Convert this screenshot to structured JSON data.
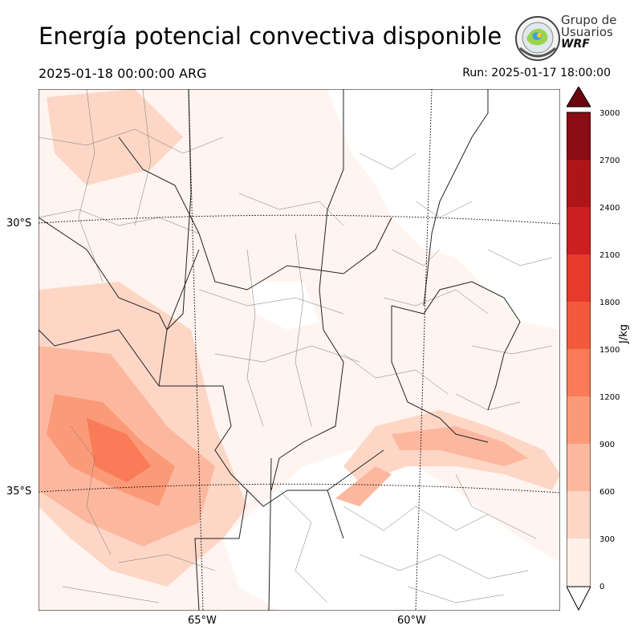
{
  "header": {
    "title": "Energía potencial convectiva disponible",
    "valid_time": "2025-01-18 00:00:00 ARG",
    "run_time": "Run: 2025-01-17 18:00:00"
  },
  "logo": {
    "line1": "Grupo de",
    "line2": "Usuarios",
    "line3": "WRF"
  },
  "map": {
    "lat_labels": [
      "30°S",
      "35°S"
    ],
    "lon_labels": [
      "65°W",
      "60°W"
    ]
  },
  "colorbar": {
    "unit": "J/kg",
    "ticks": [
      "0",
      "300",
      "600",
      "900",
      "1200",
      "1500",
      "1800",
      "2100",
      "2400",
      "2700",
      "3000"
    ],
    "colors": [
      "#fff0e8",
      "#fdd6c6",
      "#fcb89e",
      "#fb9a78",
      "#f97b58",
      "#f25a3e",
      "#e63a2c",
      "#cc1f22",
      "#ae1519",
      "#8a0c14",
      "#6a0610"
    ]
  }
}
